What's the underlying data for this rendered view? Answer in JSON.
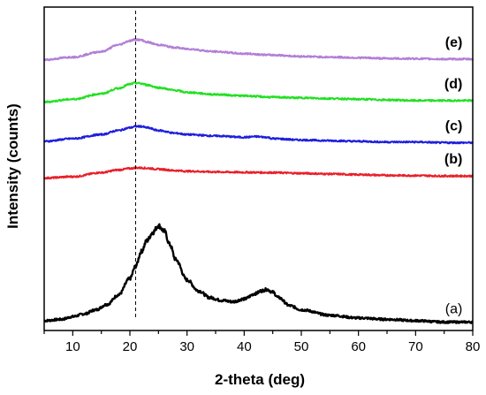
{
  "chart_data": {
    "type": "line",
    "title": "",
    "xlabel": "2-theta (deg)",
    "ylabel": "Intensity (counts)",
    "xlim": [
      5,
      80
    ],
    "xticks": [
      10,
      20,
      30,
      40,
      50,
      60,
      70,
      80
    ],
    "y_tick_labels": false,
    "reference_line": {
      "x": 21,
      "style": "dashed"
    },
    "series": [
      {
        "name": "(a)",
        "color": "#000000",
        "x": [
          5,
          8,
          10,
          12,
          14,
          16,
          18,
          20,
          21,
          22,
          23,
          24,
          25,
          26,
          27,
          28,
          30,
          32,
          34,
          36,
          38,
          40,
          42,
          43,
          44,
          45,
          46,
          48,
          50,
          55,
          60,
          65,
          70,
          75,
          80
        ],
        "y": [
          0.02,
          0.03,
          0.05,
          0.07,
          0.1,
          0.14,
          0.21,
          0.33,
          0.42,
          0.53,
          0.61,
          0.67,
          0.72,
          0.68,
          0.58,
          0.47,
          0.32,
          0.24,
          0.19,
          0.17,
          0.16,
          0.18,
          0.22,
          0.24,
          0.25,
          0.23,
          0.19,
          0.13,
          0.1,
          0.06,
          0.04,
          0.03,
          0.02,
          0.01,
          0.01
        ]
      },
      {
        "name": "(b)",
        "color": "#e8202a",
        "x": [
          5,
          10,
          15,
          18,
          20,
          21,
          22,
          23,
          25,
          28,
          30,
          35,
          40,
          45,
          50,
          55,
          60,
          65,
          70,
          75,
          80
        ],
        "y": [
          1.07,
          1.08,
          1.11,
          1.13,
          1.14,
          1.145,
          1.145,
          1.142,
          1.135,
          1.125,
          1.12,
          1.115,
          1.112,
          1.11,
          1.105,
          1.1,
          1.095,
          1.09,
          1.088,
          1.085,
          1.085
        ]
      },
      {
        "name": "(c)",
        "color": "#1f1fdc",
        "x": [
          5,
          10,
          15,
          18,
          20,
          21,
          22,
          23,
          25,
          28,
          30,
          35,
          40,
          42,
          44,
          45,
          50,
          55,
          60,
          65,
          70,
          75,
          80
        ],
        "y": [
          1.34,
          1.36,
          1.39,
          1.42,
          1.44,
          1.45,
          1.45,
          1.44,
          1.42,
          1.4,
          1.39,
          1.38,
          1.37,
          1.375,
          1.37,
          1.36,
          1.35,
          1.345,
          1.34,
          1.335,
          1.335,
          1.33,
          1.33
        ]
      },
      {
        "name": "(d)",
        "color": "#22e022",
        "x": [
          5,
          10,
          15,
          18,
          20,
          21,
          22,
          23,
          25,
          28,
          30,
          35,
          40,
          45,
          50,
          55,
          60,
          65,
          70,
          75,
          80
        ],
        "y": [
          1.63,
          1.65,
          1.69,
          1.73,
          1.76,
          1.77,
          1.765,
          1.755,
          1.735,
          1.715,
          1.7,
          1.685,
          1.675,
          1.665,
          1.66,
          1.655,
          1.65,
          1.645,
          1.64,
          1.64,
          1.64
        ]
      },
      {
        "name": "(e)",
        "color": "#b27fd6",
        "x": [
          5,
          10,
          15,
          18,
          20,
          21,
          22,
          23,
          25,
          28,
          30,
          35,
          40,
          45,
          50,
          55,
          60,
          65,
          70,
          75,
          80
        ],
        "y": [
          1.94,
          1.96,
          2.0,
          2.05,
          2.08,
          2.09,
          2.085,
          2.07,
          2.05,
          2.03,
          2.02,
          2.0,
          1.985,
          1.975,
          1.965,
          1.96,
          1.955,
          1.95,
          1.948,
          1.945,
          1.945
        ]
      }
    ]
  }
}
